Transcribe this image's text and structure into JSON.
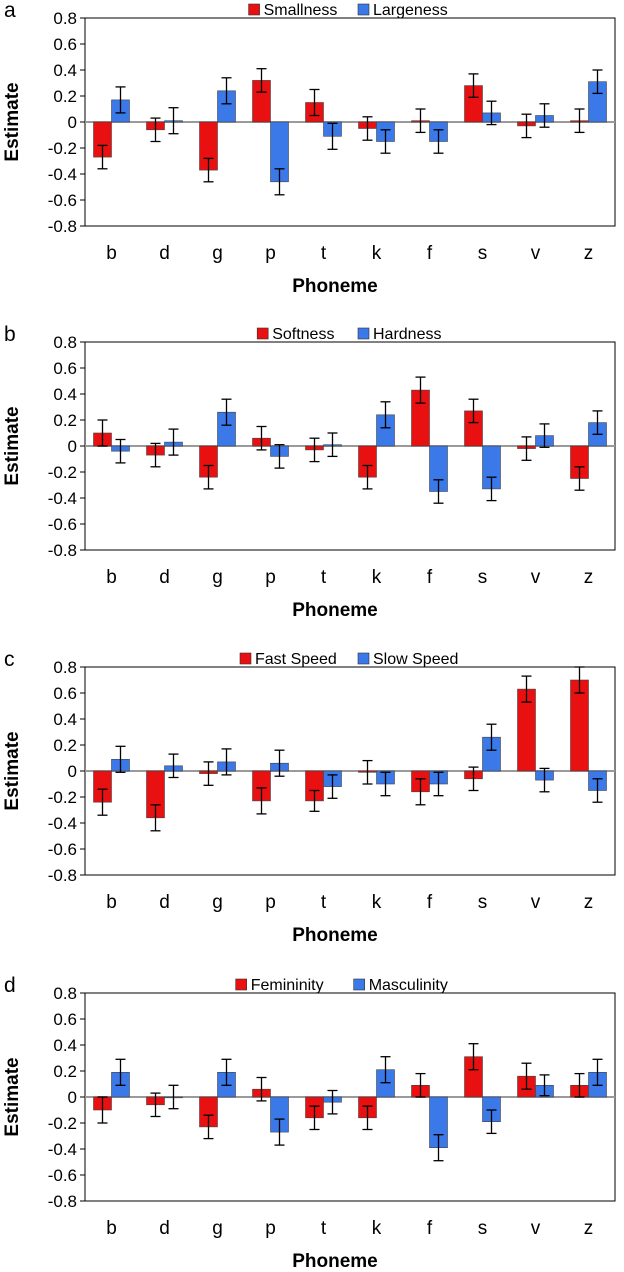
{
  "chart_data": [
    {
      "type": "bar",
      "panel_label": "a",
      "title": "",
      "xlabel": "Phoneme",
      "ylabel": "Estimate",
      "ylim": [
        -0.8,
        0.8
      ],
      "yticks": [
        "0.8",
        "0.6",
        "0.4",
        "0.2",
        "0",
        "-0.2",
        "-0.4",
        "-0.6",
        "-0.8"
      ],
      "categories": [
        "b",
        "d",
        "g",
        "p",
        "t",
        "k",
        "f",
        "s",
        "v",
        "z"
      ],
      "legend_position": "top",
      "series": [
        {
          "name": "Smallness",
          "color": "#e81010",
          "values": [
            -0.27,
            -0.06,
            -0.37,
            0.32,
            0.15,
            -0.05,
            0.01,
            0.28,
            -0.03,
            0.01
          ],
          "errors": [
            0.09,
            0.09,
            0.09,
            0.09,
            0.1,
            0.09,
            0.09,
            0.09,
            0.09,
            0.09
          ]
        },
        {
          "name": "Largeness",
          "color": "#3b78e8",
          "values": [
            0.17,
            0.01,
            0.24,
            -0.46,
            -0.11,
            -0.15,
            -0.15,
            0.07,
            0.05,
            0.31
          ],
          "errors": [
            0.1,
            0.1,
            0.1,
            0.1,
            0.1,
            0.09,
            0.09,
            0.09,
            0.09,
            0.09
          ]
        }
      ]
    },
    {
      "type": "bar",
      "panel_label": "b",
      "title": "",
      "xlabel": "Phoneme",
      "ylabel": "Estimate",
      "ylim": [
        -0.8,
        0.8
      ],
      "yticks": [
        "0.8",
        "0.6",
        "0.4",
        "0.2",
        "0",
        "-0.2",
        "-0.4",
        "-0.6",
        "-0.8"
      ],
      "categories": [
        "b",
        "d",
        "g",
        "p",
        "t",
        "k",
        "f",
        "s",
        "v",
        "z"
      ],
      "legend_position": "top",
      "series": [
        {
          "name": "Softness",
          "color": "#e81010",
          "values": [
            0.1,
            -0.07,
            -0.24,
            0.06,
            -0.03,
            -0.24,
            0.43,
            0.27,
            -0.02,
            -0.25
          ],
          "errors": [
            0.1,
            0.09,
            0.09,
            0.09,
            0.09,
            0.09,
            0.1,
            0.09,
            0.09,
            0.09
          ]
        },
        {
          "name": "Hardness",
          "color": "#3b78e8",
          "values": [
            -0.04,
            0.03,
            0.26,
            -0.08,
            0.01,
            0.24,
            -0.35,
            -0.33,
            0.08,
            0.18
          ],
          "errors": [
            0.09,
            0.1,
            0.1,
            0.09,
            0.09,
            0.1,
            0.09,
            0.09,
            0.09,
            0.09
          ]
        }
      ]
    },
    {
      "type": "bar",
      "panel_label": "c",
      "title": "",
      "xlabel": "Phoneme",
      "ylabel": "Estimate",
      "ylim": [
        -0.8,
        0.8
      ],
      "yticks": [
        "0.8",
        "0.6",
        "0.4",
        "0.2",
        "0",
        "-0.2",
        "-0.4",
        "-0.6",
        "-0.8"
      ],
      "categories": [
        "b",
        "d",
        "g",
        "p",
        "t",
        "k",
        "f",
        "s",
        "v",
        "z"
      ],
      "legend_position": "top",
      "series": [
        {
          "name": "Fast Speed",
          "color": "#e81010",
          "values": [
            -0.24,
            -0.36,
            -0.02,
            -0.23,
            -0.23,
            -0.01,
            -0.16,
            -0.06,
            0.63,
            0.7
          ],
          "errors": [
            0.1,
            0.1,
            0.09,
            0.1,
            0.08,
            0.09,
            0.1,
            0.09,
            0.1,
            0.1
          ]
        },
        {
          "name": "Slow Speed",
          "color": "#3b78e8",
          "values": [
            0.09,
            0.04,
            0.07,
            0.06,
            -0.12,
            -0.1,
            -0.1,
            0.26,
            -0.07,
            -0.15
          ],
          "errors": [
            0.1,
            0.09,
            0.1,
            0.1,
            0.09,
            0.09,
            0.09,
            0.1,
            0.09,
            0.09
          ]
        }
      ]
    },
    {
      "type": "bar",
      "panel_label": "d",
      "title": "",
      "xlabel": "Phoneme",
      "ylabel": "Estimate",
      "ylim": [
        -0.8,
        0.8
      ],
      "yticks": [
        "0.8",
        "0.6",
        "0.4",
        "0.2",
        "0",
        "-0.2",
        "-0.4",
        "-0.6",
        "-0.8"
      ],
      "categories": [
        "b",
        "d",
        "g",
        "p",
        "t",
        "k",
        "f",
        "s",
        "v",
        "z"
      ],
      "legend_position": "top",
      "series": [
        {
          "name": "Femininity",
          "color": "#e81010",
          "values": [
            -0.1,
            -0.06,
            -0.23,
            0.06,
            -0.16,
            -0.16,
            0.09,
            0.31,
            0.16,
            0.09
          ],
          "errors": [
            0.1,
            0.09,
            0.09,
            0.09,
            0.09,
            0.09,
            0.09,
            0.1,
            0.1,
            0.09
          ]
        },
        {
          "name": "Masculinity",
          "color": "#3b78e8",
          "values": [
            0.19,
            0.0,
            0.19,
            -0.27,
            -0.04,
            0.21,
            -0.39,
            -0.19,
            0.09,
            0.19
          ],
          "errors": [
            0.1,
            0.09,
            0.1,
            0.1,
            0.09,
            0.1,
            0.1,
            0.09,
            0.08,
            0.1
          ]
        }
      ]
    }
  ]
}
